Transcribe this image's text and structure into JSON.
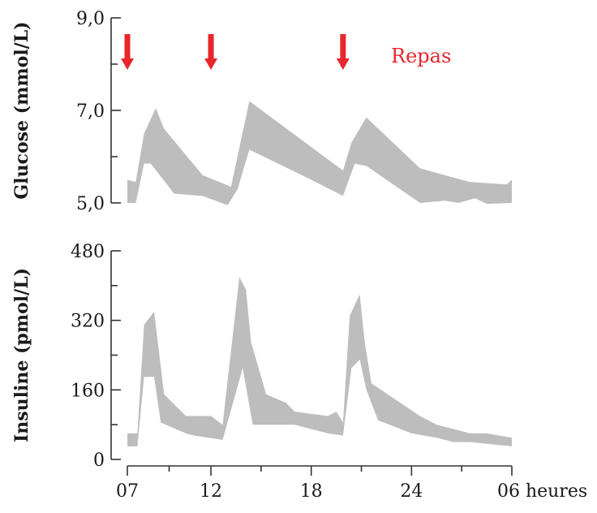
{
  "chart_data": [
    {
      "type": "area",
      "ylabel": "Glucose (mmol/L)",
      "ylim": [
        5.0,
        9.0
      ],
      "yticks": [
        {
          "value": 9.0,
          "label": "9,0"
        },
        {
          "value": 7.0,
          "label": "7,0"
        },
        {
          "value": 5.0,
          "label": "5,0"
        }
      ],
      "xlim": [
        7,
        30
      ],
      "grid": false,
      "band_color": "#bdbdbd",
      "upper": [
        [
          7.0,
          5.5
        ],
        [
          7.5,
          5.45
        ],
        [
          8.0,
          6.5
        ],
        [
          8.7,
          7.05
        ],
        [
          9.2,
          6.6
        ],
        [
          11.5,
          5.6
        ],
        [
          13.2,
          5.35
        ],
        [
          14.3,
          7.2
        ],
        [
          19.9,
          5.7
        ],
        [
          20.4,
          6.3
        ],
        [
          21.3,
          6.85
        ],
        [
          24.5,
          5.75
        ],
        [
          26.5,
          5.55
        ],
        [
          27.5,
          5.45
        ],
        [
          29.7,
          5.4
        ],
        [
          30.0,
          5.5
        ]
      ],
      "lower": [
        [
          30.0,
          5.0
        ],
        [
          28.5,
          4.98
        ],
        [
          27.8,
          5.1
        ],
        [
          26.8,
          5.0
        ],
        [
          26.0,
          5.05
        ],
        [
          24.5,
          5.0
        ],
        [
          21.3,
          5.8
        ],
        [
          20.6,
          5.85
        ],
        [
          19.9,
          5.15
        ],
        [
          18.0,
          5.5
        ],
        [
          14.3,
          6.15
        ],
        [
          13.6,
          5.3
        ],
        [
          13.0,
          4.95
        ],
        [
          11.5,
          5.15
        ],
        [
          9.8,
          5.2
        ],
        [
          8.4,
          5.85
        ],
        [
          8.0,
          5.85
        ],
        [
          7.5,
          5.0
        ],
        [
          7.0,
          5.0
        ]
      ]
    },
    {
      "type": "area",
      "ylabel": "Insuline (pmol/L)",
      "ylim": [
        0,
        480
      ],
      "yticks": [
        {
          "value": 480,
          "label": "480"
        },
        {
          "value": 320,
          "label": "320"
        },
        {
          "value": 160,
          "label": "160"
        },
        {
          "value": 0,
          "label": "0"
        }
      ],
      "xlim": [
        7,
        30
      ],
      "xticks": [
        {
          "value": 7,
          "label": "07"
        },
        {
          "value": 12,
          "label": "12"
        },
        {
          "value": 18,
          "label": "18"
        },
        {
          "value": 24,
          "label": "24"
        },
        {
          "value": 30,
          "label": "06 heures"
        }
      ],
      "grid": false,
      "band_color": "#bdbdbd",
      "upper": [
        [
          7.0,
          60
        ],
        [
          7.6,
          60
        ],
        [
          8.0,
          310
        ],
        [
          8.6,
          340
        ],
        [
          9.2,
          150
        ],
        [
          10.5,
          100
        ],
        [
          12.0,
          100
        ],
        [
          12.7,
          80
        ],
        [
          13.7,
          420
        ],
        [
          14.1,
          390
        ],
        [
          14.4,
          270
        ],
        [
          15.3,
          150
        ],
        [
          16.5,
          130
        ],
        [
          17.0,
          110
        ],
        [
          19.0,
          100
        ],
        [
          19.5,
          110
        ],
        [
          19.9,
          85
        ],
        [
          20.3,
          330
        ],
        [
          20.9,
          380
        ],
        [
          21.2,
          270
        ],
        [
          21.6,
          175
        ],
        [
          24.5,
          100
        ],
        [
          25.0,
          90
        ],
        [
          25.5,
          80
        ],
        [
          26.5,
          70
        ],
        [
          27.5,
          60
        ],
        [
          28.5,
          60
        ],
        [
          30.0,
          50
        ]
      ],
      "lower": [
        [
          30.0,
          30
        ],
        [
          27.5,
          40
        ],
        [
          26.5,
          40
        ],
        [
          25.5,
          50
        ],
        [
          24.0,
          60
        ],
        [
          22.0,
          90
        ],
        [
          21.3,
          160
        ],
        [
          20.9,
          230
        ],
        [
          20.4,
          210
        ],
        [
          19.9,
          55
        ],
        [
          19.0,
          60
        ],
        [
          17.0,
          80
        ],
        [
          16.0,
          80
        ],
        [
          14.5,
          80
        ],
        [
          13.9,
          210
        ],
        [
          12.7,
          45
        ],
        [
          11.0,
          55
        ],
        [
          10.5,
          60
        ],
        [
          9.0,
          85
        ],
        [
          8.6,
          190
        ],
        [
          8.0,
          190
        ],
        [
          7.6,
          30
        ],
        [
          7.0,
          30
        ]
      ]
    }
  ],
  "meals": {
    "label": "Repas",
    "color": "#e8262b",
    "times": [
      7.0,
      12.0,
      19.9
    ]
  }
}
